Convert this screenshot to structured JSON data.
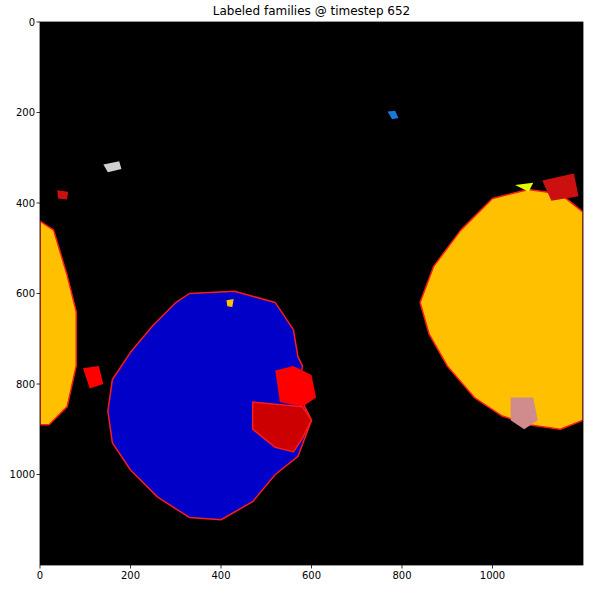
{
  "chart_data": {
    "type": "image",
    "title": "Labeled families @ timestep 652",
    "xlim": [
      0,
      1200
    ],
    "ylim": [
      1200,
      0
    ],
    "xticks": [
      0,
      200,
      400,
      600,
      800,
      1000
    ],
    "yticks": [
      0,
      200,
      400,
      600,
      800,
      1000
    ],
    "regions": [
      {
        "color": "#0000c8",
        "x": [
          330,
          430,
          520,
          560,
          570,
          580,
          570,
          600,
          570,
          520,
          470,
          400,
          330,
          260,
          200,
          160,
          150,
          160,
          200,
          250,
          300
        ],
        "y": [
          600,
          595,
          620,
          680,
          740,
          760,
          820,
          880,
          960,
          1000,
          1060,
          1100,
          1095,
          1050,
          990,
          930,
          860,
          790,
          730,
          670,
          620
        ]
      },
      {
        "color": "#ff0000",
        "x": [
          520,
          560,
          600,
          610,
          580,
          530
        ],
        "y": [
          770,
          760,
          780,
          830,
          850,
          840
        ]
      },
      {
        "color": "#cc0000",
        "x": [
          470,
          580,
          600,
          580,
          560,
          520,
          470
        ],
        "y": [
          840,
          850,
          880,
          920,
          950,
          940,
          900
        ]
      },
      {
        "color": "#ffc000",
        "x": [
          1000,
          1080,
          1150,
          1200,
          1200,
          1150,
          1080,
          1020,
          960,
          900,
          860,
          840,
          870,
          930
        ],
        "y": [
          390,
          370,
          380,
          420,
          880,
          900,
          890,
          870,
          830,
          760,
          690,
          620,
          540,
          460
        ]
      },
      {
        "color": "#d08c8c",
        "x": [
          1040,
          1090,
          1100,
          1070,
          1040
        ],
        "y": [
          830,
          830,
          880,
          900,
          880
        ]
      },
      {
        "color": "#cc1010",
        "x": [
          1110,
          1180,
          1190,
          1130
        ],
        "y": [
          350,
          335,
          385,
          395
        ]
      },
      {
        "color": "#e0ff00",
        "x": [
          1050,
          1090,
          1080
        ],
        "y": [
          360,
          355,
          375
        ]
      },
      {
        "color": "#ffc000",
        "x": [
          0,
          30,
          60,
          80,
          80,
          60,
          20,
          0
        ],
        "y": [
          440,
          460,
          560,
          640,
          760,
          850,
          890,
          890
        ]
      },
      {
        "color": "#ff0000",
        "x": [
          95,
          130,
          140,
          110
        ],
        "y": [
          765,
          760,
          800,
          810
        ]
      },
      {
        "color": "#cc1010",
        "x": [
          38,
          62,
          60,
          40
        ],
        "y": [
          372,
          375,
          392,
          390
        ]
      },
      {
        "color": "#d0d0d0",
        "x": [
          140,
          175,
          180,
          150
        ],
        "y": [
          315,
          308,
          325,
          332
        ]
      },
      {
        "color": "#1878d8",
        "x": [
          768,
          785,
          792,
          778
        ],
        "y": [
          198,
          196,
          212,
          215
        ]
      },
      {
        "color": "#ffc000",
        "x": [
          412,
          428,
          425,
          414
        ],
        "y": [
          615,
          612,
          630,
          628
        ]
      }
    ]
  }
}
